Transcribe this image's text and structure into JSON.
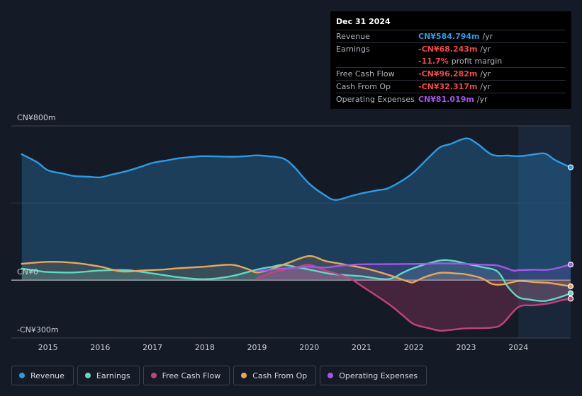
{
  "tooltip": {
    "date": "Dec 31 2024",
    "rows": [
      {
        "label": "Revenue",
        "value": "CN¥584.794m",
        "unit": "/yr",
        "color": "#2d9be5"
      },
      {
        "label": "Earnings",
        "value": "-CN¥68.243m",
        "unit": "/yr",
        "color": "#ef4a4a"
      },
      {
        "label": "",
        "value": "-11.7%",
        "unit": "profit margin",
        "color": "#ef4a4a"
      },
      {
        "label": "Free Cash Flow",
        "value": "-CN¥96.282m",
        "unit": "/yr",
        "color": "#ef4a4a"
      },
      {
        "label": "Cash From Op",
        "value": "-CN¥32.317m",
        "unit": "/yr",
        "color": "#ef4a4a"
      },
      {
        "label": "Operating Expenses",
        "value": "CN¥81.019m",
        "unit": "/yr",
        "color": "#a457e8"
      }
    ]
  },
  "legend": [
    {
      "label": "Revenue",
      "color": "#2d9be5"
    },
    {
      "label": "Earnings",
      "color": "#5fd8c4"
    },
    {
      "label": "Free Cash Flow",
      "color": "#c2427e"
    },
    {
      "label": "Cash From Op",
      "color": "#e8a85a"
    },
    {
      "label": "Operating Expenses",
      "color": "#a457e8"
    }
  ],
  "chart_data": {
    "type": "area",
    "title": "",
    "xlabel": "",
    "ylabel": "",
    "y_top_label": "CN¥800m",
    "y_zero_label": "CN¥0",
    "y_bottom_label": "-CN¥300m",
    "ylim": [
      -300,
      800
    ],
    "xlim": [
      2014.3,
      2025.0
    ],
    "x_ticks": [
      "2015",
      "2016",
      "2017",
      "2018",
      "2019",
      "2020",
      "2021",
      "2022",
      "2023",
      "2024"
    ],
    "highlight_start": 2024.0,
    "series": [
      {
        "name": "Revenue",
        "color": "#2d9be5",
        "points": [
          [
            2014.5,
            653
          ],
          [
            2014.8,
            610
          ],
          [
            2015.0,
            570
          ],
          [
            2015.3,
            552
          ],
          [
            2015.5,
            540
          ],
          [
            2015.8,
            536
          ],
          [
            2016.0,
            533
          ],
          [
            2016.2,
            546
          ],
          [
            2016.5,
            565
          ],
          [
            2016.8,
            590
          ],
          [
            2017.0,
            608
          ],
          [
            2017.3,
            622
          ],
          [
            2017.5,
            632
          ],
          [
            2017.8,
            640
          ],
          [
            2018.0,
            643
          ],
          [
            2018.5,
            640
          ],
          [
            2018.8,
            643
          ],
          [
            2019.0,
            647
          ],
          [
            2019.2,
            643
          ],
          [
            2019.5,
            631
          ],
          [
            2019.7,
            590
          ],
          [
            2020.0,
            500
          ],
          [
            2020.3,
            440
          ],
          [
            2020.5,
            416
          ],
          [
            2020.8,
            436
          ],
          [
            2021.0,
            450
          ],
          [
            2021.3,
            466
          ],
          [
            2021.5,
            476
          ],
          [
            2021.8,
            520
          ],
          [
            2022.0,
            560
          ],
          [
            2022.3,
            640
          ],
          [
            2022.5,
            689
          ],
          [
            2022.7,
            706
          ],
          [
            2023.0,
            735
          ],
          [
            2023.2,
            710
          ],
          [
            2023.5,
            650
          ],
          [
            2023.8,
            646
          ],
          [
            2024.0,
            643
          ],
          [
            2024.2,
            648
          ],
          [
            2024.5,
            657
          ],
          [
            2024.7,
            623
          ],
          [
            2025.0,
            585
          ]
        ]
      },
      {
        "name": "Earnings",
        "color": "#5fd8c4",
        "points": [
          [
            2014.5,
            60
          ],
          [
            2014.8,
            48
          ],
          [
            2015.0,
            42
          ],
          [
            2015.5,
            40
          ],
          [
            2016.0,
            50
          ],
          [
            2016.5,
            52
          ],
          [
            2017.0,
            35
          ],
          [
            2017.5,
            15
          ],
          [
            2018.0,
            5
          ],
          [
            2018.5,
            20
          ],
          [
            2019.0,
            55
          ],
          [
            2019.3,
            70
          ],
          [
            2019.5,
            80
          ],
          [
            2019.8,
            65
          ],
          [
            2020.0,
            55
          ],
          [
            2020.3,
            38
          ],
          [
            2020.5,
            30
          ],
          [
            2021.0,
            20
          ],
          [
            2021.5,
            5
          ],
          [
            2021.8,
            40
          ],
          [
            2022.0,
            63
          ],
          [
            2022.5,
            102
          ],
          [
            2022.8,
            98
          ],
          [
            2023.0,
            85
          ],
          [
            2023.3,
            68
          ],
          [
            2023.6,
            45
          ],
          [
            2023.8,
            -35
          ],
          [
            2024.0,
            -88
          ],
          [
            2024.2,
            -100
          ],
          [
            2024.5,
            -108
          ],
          [
            2024.8,
            -88
          ],
          [
            2025.0,
            -68
          ]
        ]
      },
      {
        "name": "Free Cash Flow",
        "color": "#c2427e",
        "points": [
          [
            2019.0,
            10
          ],
          [
            2019.3,
            40
          ],
          [
            2019.5,
            52
          ],
          [
            2019.8,
            70
          ],
          [
            2020.0,
            80
          ],
          [
            2020.3,
            50
          ],
          [
            2020.5,
            35
          ],
          [
            2020.8,
            5
          ],
          [
            2021.0,
            -30
          ],
          [
            2021.5,
            -120
          ],
          [
            2021.8,
            -185
          ],
          [
            2022.0,
            -228
          ],
          [
            2022.3,
            -250
          ],
          [
            2022.5,
            -262
          ],
          [
            2022.7,
            -258
          ],
          [
            2023.0,
            -250
          ],
          [
            2023.5,
            -246
          ],
          [
            2023.7,
            -225
          ],
          [
            2024.0,
            -140
          ],
          [
            2024.3,
            -130
          ],
          [
            2024.6,
            -120
          ],
          [
            2024.8,
            -106
          ],
          [
            2025.0,
            -96
          ]
        ]
      },
      {
        "name": "Cash From Op",
        "color": "#e8a85a",
        "points": [
          [
            2014.5,
            85
          ],
          [
            2015.0,
            95
          ],
          [
            2015.5,
            90
          ],
          [
            2016.0,
            70
          ],
          [
            2016.4,
            45
          ],
          [
            2016.8,
            50
          ],
          [
            2017.2,
            55
          ],
          [
            2017.5,
            62
          ],
          [
            2018.0,
            70
          ],
          [
            2018.5,
            80
          ],
          [
            2018.8,
            60
          ],
          [
            2019.0,
            40
          ],
          [
            2019.3,
            60
          ],
          [
            2019.6,
            90
          ],
          [
            2020.0,
            125
          ],
          [
            2020.3,
            100
          ],
          [
            2020.6,
            85
          ],
          [
            2021.0,
            65
          ],
          [
            2021.3,
            45
          ],
          [
            2021.6,
            20
          ],
          [
            2021.9,
            -8
          ],
          [
            2022.0,
            -10
          ],
          [
            2022.2,
            15
          ],
          [
            2022.5,
            38
          ],
          [
            2022.8,
            35
          ],
          [
            2023.0,
            30
          ],
          [
            2023.3,
            10
          ],
          [
            2023.5,
            -20
          ],
          [
            2023.7,
            -22
          ],
          [
            2024.0,
            -5
          ],
          [
            2024.3,
            -10
          ],
          [
            2024.6,
            -15
          ],
          [
            2025.0,
            -32
          ]
        ]
      },
      {
        "name": "Operating Expenses",
        "color": "#a457e8",
        "points": [
          [
            2019.0,
            45
          ],
          [
            2019.3,
            55
          ],
          [
            2019.6,
            62
          ],
          [
            2020.0,
            70
          ],
          [
            2020.3,
            65
          ],
          [
            2020.6,
            75
          ],
          [
            2021.0,
            82
          ],
          [
            2021.5,
            83
          ],
          [
            2022.0,
            84
          ],
          [
            2022.3,
            85
          ],
          [
            2022.5,
            87
          ],
          [
            2022.8,
            86
          ],
          [
            2023.0,
            84
          ],
          [
            2023.3,
            80
          ],
          [
            2023.6,
            76
          ],
          [
            2023.9,
            50
          ],
          [
            2024.0,
            52
          ],
          [
            2024.3,
            54
          ],
          [
            2024.6,
            55
          ],
          [
            2025.0,
            81
          ]
        ]
      }
    ]
  }
}
